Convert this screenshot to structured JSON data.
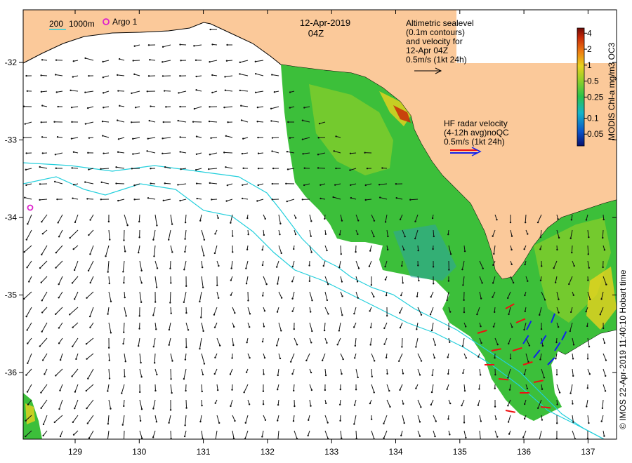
{
  "title": {
    "date": "12-Apr-2019",
    "time": "04Z"
  },
  "legend": {
    "isobaths": {
      "depth_1": "200",
      "depth_2": "1000m",
      "color": "#22cfdc"
    },
    "argo": {
      "label": "Argo 1",
      "color": "#dd22cc"
    },
    "altimetry": {
      "lines": [
        "Altimetric sealevel",
        "(0.1m contours)",
        "and velocity for",
        "12-Apr 04Z",
        "0.5m/s (1kt 24h)"
      ]
    },
    "hf_radar": {
      "lines": [
        "HF radar velocity",
        "(4-12h avg)noQC",
        "0.5m/s (1kt 24h)"
      ],
      "colors": [
        "#ee1111",
        "#1122ee"
      ]
    }
  },
  "axes": {
    "x_ticks": [
      "129",
      "130",
      "131",
      "132",
      "133",
      "134",
      "135",
      "136",
      "137"
    ],
    "y_ticks": [
      "-32",
      "-33",
      "-34",
      "-35",
      "-36"
    ]
  },
  "colorbar": {
    "label": "MODIS Chl-a mg/m3 OC3",
    "ticks": [
      "4",
      "2",
      "1",
      "0.5",
      "0.25",
      "0.1",
      "0.05"
    ],
    "scale": "log",
    "range": [
      0.03,
      5
    ],
    "colors": [
      "#08106e",
      "#0a52c8",
      "#13b4c8",
      "#2ac24a",
      "#8ccf2a",
      "#e8d21e",
      "#ee7d12",
      "#c82a08",
      "#700a06"
    ]
  },
  "credit": "© IMOS 22-Apr-2019 11:40:10 Hobart time",
  "colors": {
    "land": "#fbc99a",
    "ocean": "#ffffff",
    "arrow": "#111111"
  }
}
